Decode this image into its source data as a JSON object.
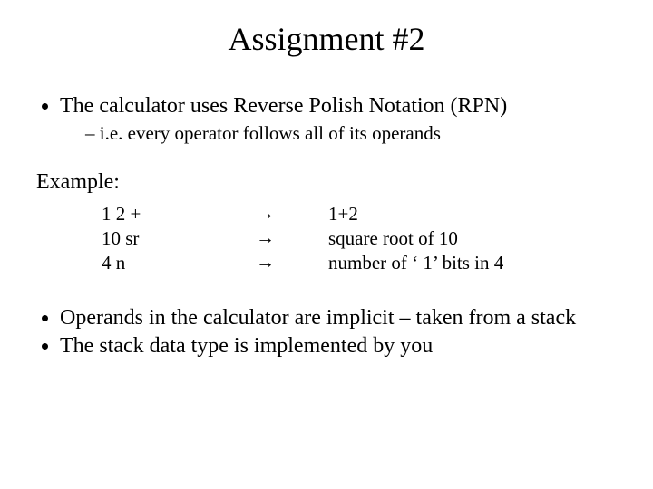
{
  "title": "Assignment #2",
  "bullet1": "The calculator uses Reverse Polish Notation (RPN)",
  "bullet1_sub": "i.e. every operator follows all of its operands",
  "example_label": "Example:",
  "examples": {
    "r0": {
      "rpn": "1   2    +",
      "arrow": "→",
      "desc": "1+2"
    },
    "r1": {
      "rpn": "10   sr",
      "arrow": "→",
      "desc": "square root of 10"
    },
    "r2": {
      "rpn": "4   n",
      "arrow": "→",
      "desc": "number of ‘ 1’ bits in 4"
    }
  },
  "bullet2": "Operands in the calculator are implicit – taken from a stack",
  "bullet3": "The stack data type is implemented by you"
}
